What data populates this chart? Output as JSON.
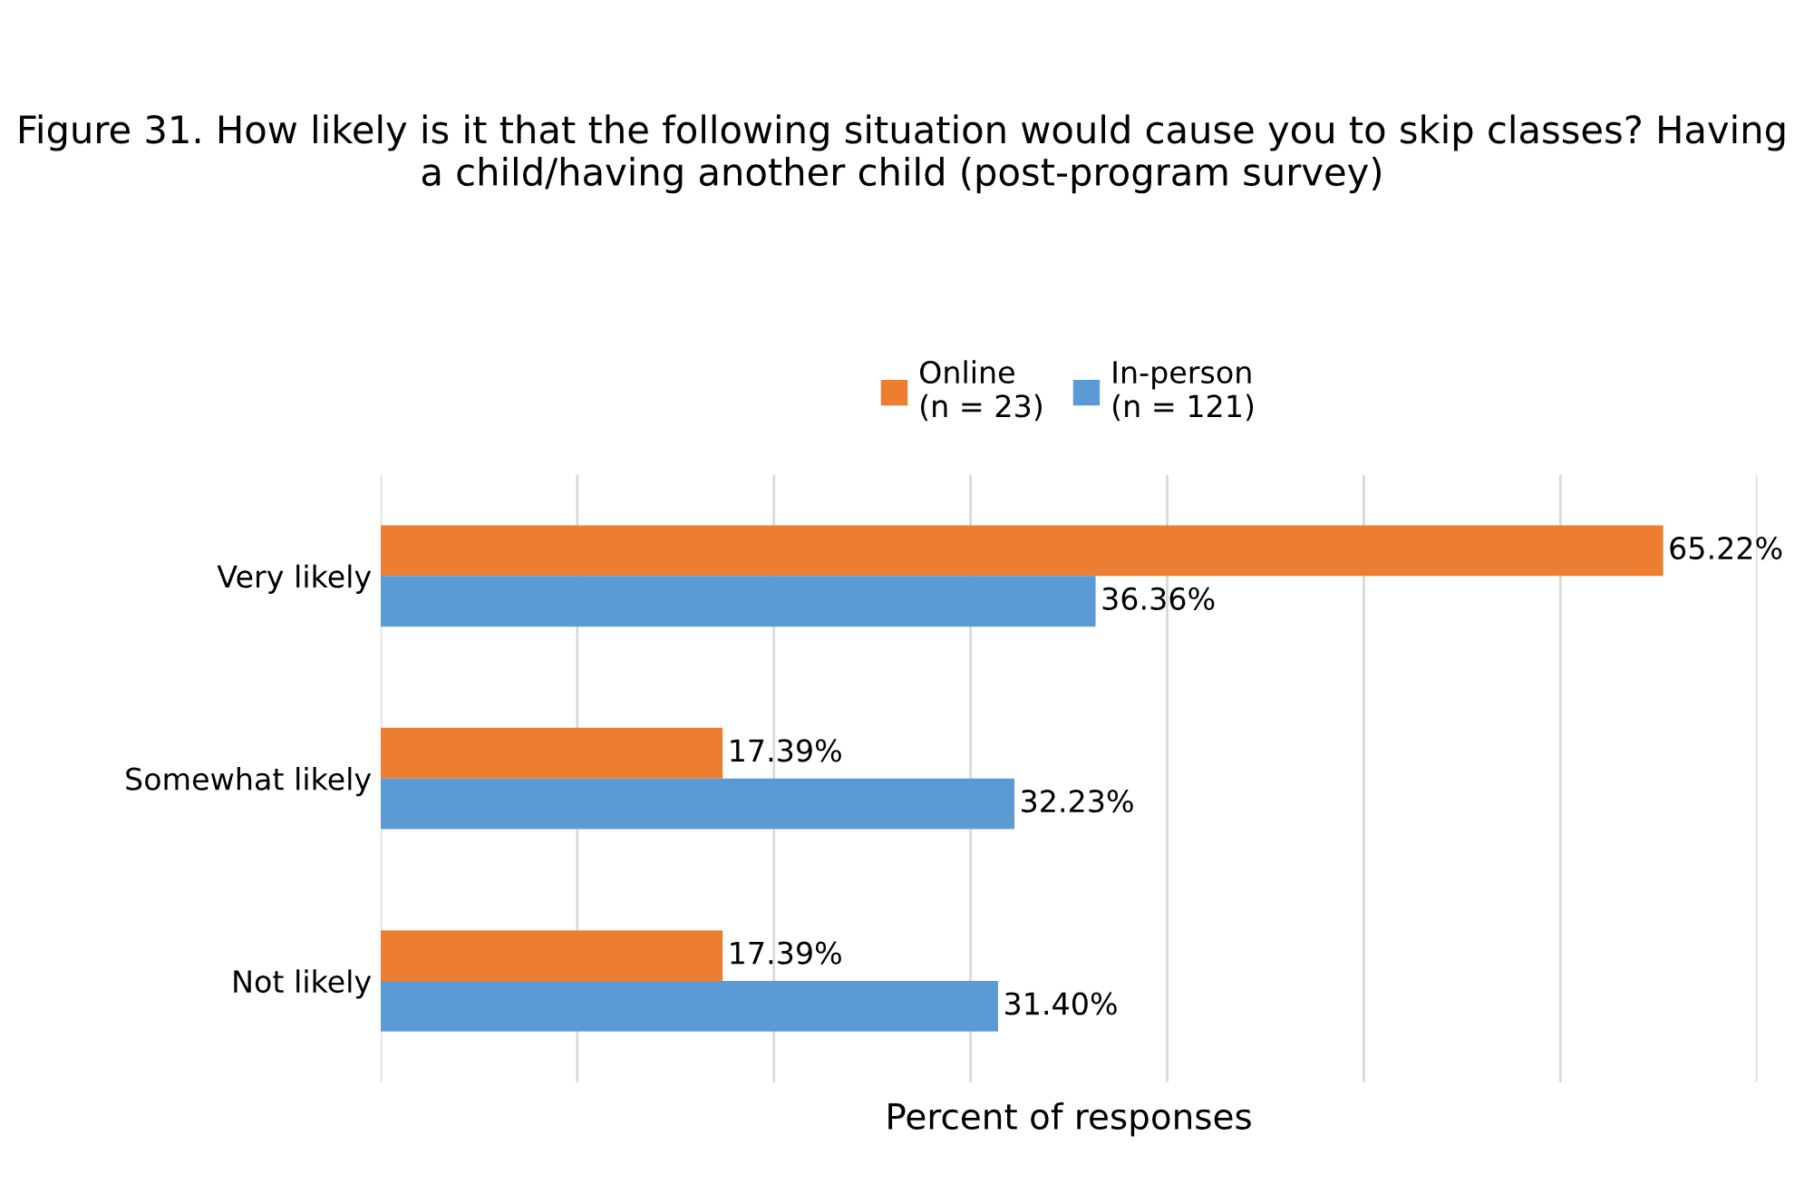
{
  "chart_data": {
    "type": "bar",
    "orientation": "horizontal",
    "title": "Figure 31. How likely is it that the following situation would cause you to skip classes? Having a child/having another child (post-program survey)",
    "xlabel": "Percent of responses",
    "categories": [
      "Very likely",
      "Somewhat likely",
      "Not likely"
    ],
    "series": [
      {
        "name": "Online\n(n = 23)",
        "color": "#ed7d31",
        "values": [
          65.22,
          17.39,
          17.39
        ],
        "value_labels": [
          "65.22%",
          "17.39%",
          "17.39%"
        ]
      },
      {
        "name": "In-person\n(n = 121)",
        "color": "#5b9bd5",
        "values": [
          36.36,
          32.23,
          31.4
        ],
        "value_labels": [
          "36.36%",
          "32.23%",
          "31.40%"
        ]
      }
    ],
    "xlim": [
      0,
      70
    ],
    "xticks": [
      {
        "value": 0,
        "label": null
      },
      {
        "value": 10,
        "label": null
      },
      {
        "value": 20,
        "label": null
      },
      {
        "value": 30,
        "label": null
      },
      {
        "value": 40,
        "label": null
      },
      {
        "value": 50,
        "label": null
      },
      {
        "value": 60,
        "label": null
      },
      {
        "value": 70,
        "label": null
      }
    ],
    "grid": "x",
    "legend": "top",
    "tick_labels": "y"
  }
}
